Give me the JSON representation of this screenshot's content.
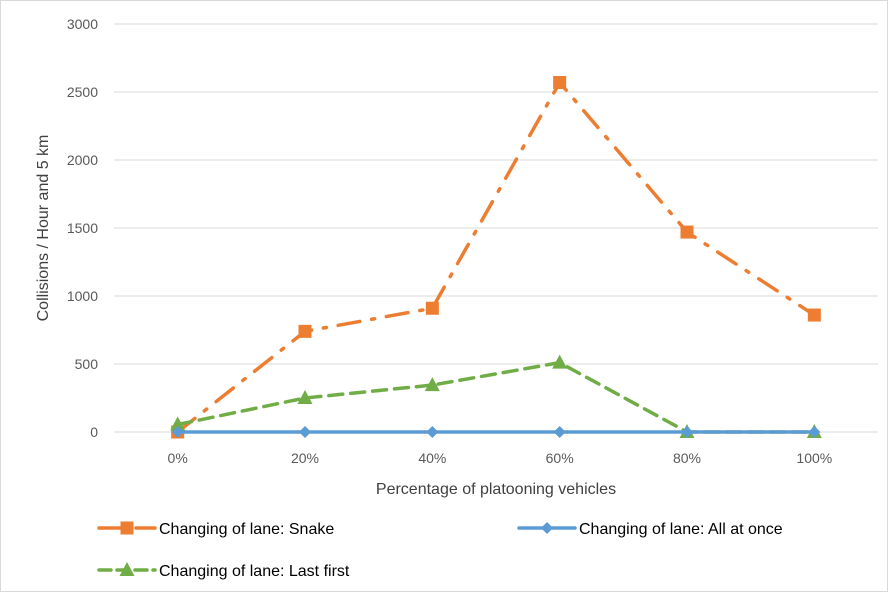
{
  "chart_data": {
    "type": "line",
    "title": "",
    "xlabel": "Percentage of platooning vehicles",
    "ylabel": "Collisions / Hour and 5 km",
    "categories": [
      "0%",
      "20%",
      "40%",
      "60%",
      "80%",
      "100%"
    ],
    "ylim": [
      0,
      3000
    ],
    "yticks": [
      0,
      500,
      1000,
      1500,
      2000,
      2500,
      3000
    ],
    "grid": true,
    "legend_position": "bottom",
    "series": [
      {
        "name": "Changing of lane: Snake",
        "values": [
          0,
          740,
          910,
          2570,
          1470,
          860
        ],
        "color": "#ED7D31",
        "marker": "square",
        "line_style": "dash-dot"
      },
      {
        "name": "Changing of lane: All at once",
        "values": [
          0,
          0,
          0,
          0,
          0,
          0
        ],
        "color": "#5B9BD5",
        "marker": "diamond",
        "line_style": "solid"
      },
      {
        "name": "Changing of lane: Last first",
        "values": [
          55,
          250,
          345,
          510,
          0,
          0
        ],
        "color": "#70AD47",
        "marker": "triangle",
        "line_style": "dash"
      }
    ]
  }
}
